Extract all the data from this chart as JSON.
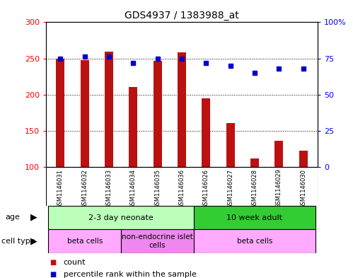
{
  "title": "GDS4937 / 1383988_at",
  "samples": [
    "GSM1146031",
    "GSM1146032",
    "GSM1146033",
    "GSM1146034",
    "GSM1146035",
    "GSM1146036",
    "GSM1146026",
    "GSM1146027",
    "GSM1146028",
    "GSM1146029",
    "GSM1146030"
  ],
  "counts": [
    250,
    248,
    259,
    210,
    247,
    258,
    195,
    160,
    112,
    136,
    122
  ],
  "percentiles": [
    75,
    76,
    76,
    72,
    75,
    75,
    72,
    70,
    65,
    68,
    68
  ],
  "ylim_left": [
    100,
    300
  ],
  "ylim_right": [
    0,
    100
  ],
  "yticks_left": [
    100,
    150,
    200,
    250,
    300
  ],
  "yticks_right": [
    0,
    25,
    50,
    75,
    100
  ],
  "ytick_labels_left": [
    "100",
    "150",
    "200",
    "250",
    "300"
  ],
  "ytick_labels_right": [
    "0",
    "25",
    "50",
    "75",
    "100%"
  ],
  "bar_color": "#bb1111",
  "dot_color": "#0000cc",
  "age_groups": [
    {
      "label": "2-3 day neonate",
      "start": 0,
      "end": 5,
      "color": "#bbffbb"
    },
    {
      "label": "10 week adult",
      "start": 6,
      "end": 10,
      "color": "#33cc33"
    }
  ],
  "cell_type_groups": [
    {
      "label": "beta cells",
      "start": 0,
      "end": 2,
      "color": "#ffaaff"
    },
    {
      "label": "non-endocrine islet\ncells",
      "start": 3,
      "end": 5,
      "color": "#ee88ee"
    },
    {
      "label": "beta cells",
      "start": 6,
      "end": 10,
      "color": "#ffaaff"
    }
  ],
  "bg_color": "#ffffff",
  "sample_bg_color": "#cccccc",
  "legend_items": [
    {
      "label": "count",
      "color": "#bb1111"
    },
    {
      "label": "percentile rank within the sample",
      "color": "#0000cc"
    }
  ]
}
